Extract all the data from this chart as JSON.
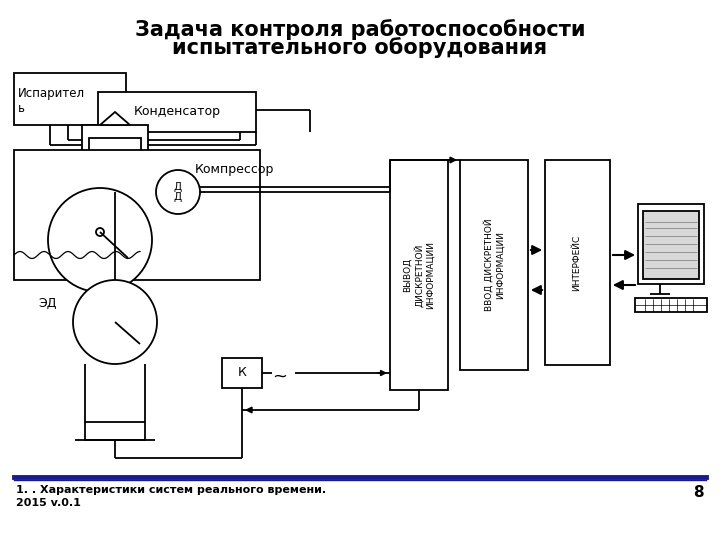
{
  "title_line1": "Задача контроля работоспособности",
  "title_line2": "испытательного оборудования",
  "footer_text": "1. . Характеристики систем реального времени.\n2015 v.0.1",
  "page_number": "8",
  "label_evaporator": "Испарител\nь",
  "label_condenser": "Конденсатор",
  "label_compressor": "Компрессор",
  "label_dd": "Д\nД",
  "label_ed": "ЭД",
  "label_k": "К",
  "label_vyvod": "ВЫВОД\nДИСКРЕТНОЙ\nИНФОРМАЦИИ",
  "label_vvod": "ВВОД ДИСКРЕТНОЙ\nИНФОРМАЦИИ",
  "label_interface": "ИНТЕРФЕЙС",
  "bg_color": "#ffffff",
  "line_color": "#000000",
  "title_fontsize": 15,
  "footer_fontsize": 8,
  "footer_line_color": "#1a1a8c",
  "lw": 1.3
}
